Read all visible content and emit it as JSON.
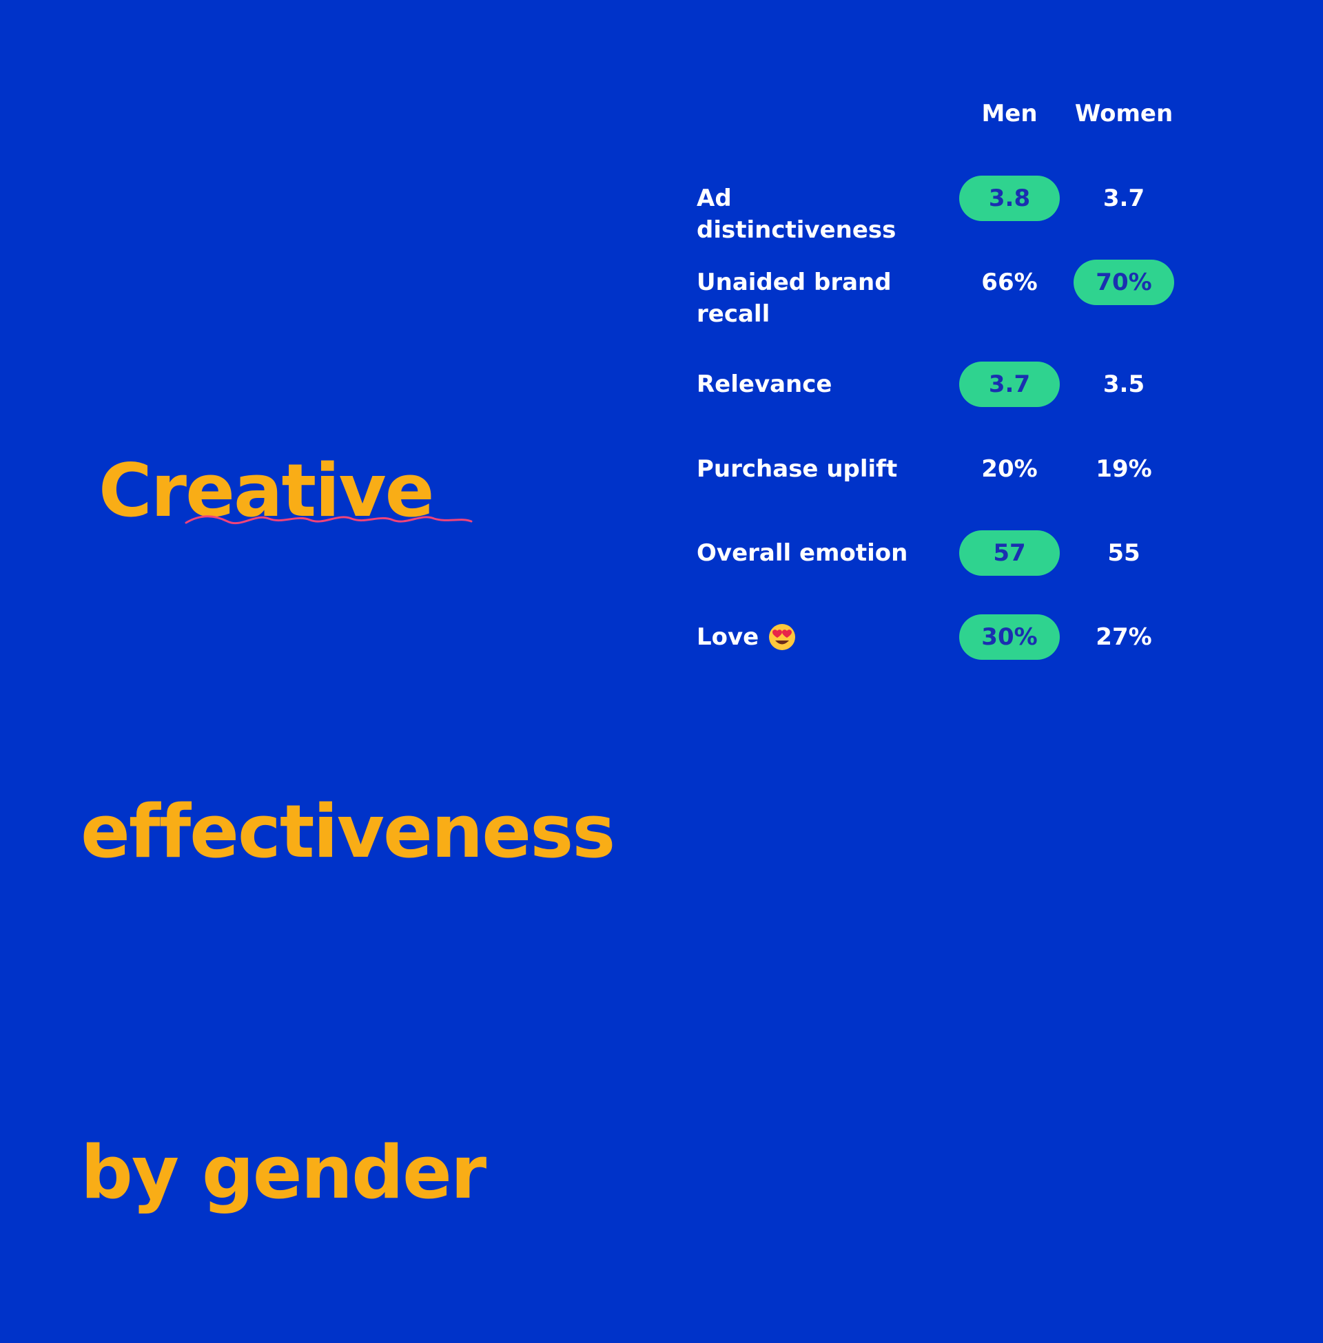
{
  "title_lines": [
    "Creative",
    "effectiveness",
    "by gender"
  ],
  "colors": {
    "background": "#0033c9",
    "title": "#f9ad16",
    "highlight_pill": "#2fd38f",
    "highlight_text": "#1a2fb0",
    "squiggle": "#f0447a",
    "text": "#ffffff"
  },
  "chart_data": {
    "type": "table",
    "columns": [
      "Men",
      "Women"
    ],
    "rows": [
      {
        "label": "Ad distinctiveness",
        "men": "3.8",
        "women": "3.7",
        "highlight": "men"
      },
      {
        "label": "Unaided brand recall",
        "men": "66%",
        "women": "70%",
        "highlight": "women"
      },
      {
        "label": "Relevance",
        "men": "3.7",
        "women": "3.5",
        "highlight": "men"
      },
      {
        "label": "Purchase uplift",
        "men": "20%",
        "women": "19%",
        "highlight": "none"
      },
      {
        "label": "Overall emotion",
        "men": "57",
        "women": "55",
        "highlight": "men"
      },
      {
        "label": "Love",
        "men": "30%",
        "women": "27%",
        "highlight": "men",
        "icon": "heart-eyes-emoji-icon"
      }
    ]
  }
}
